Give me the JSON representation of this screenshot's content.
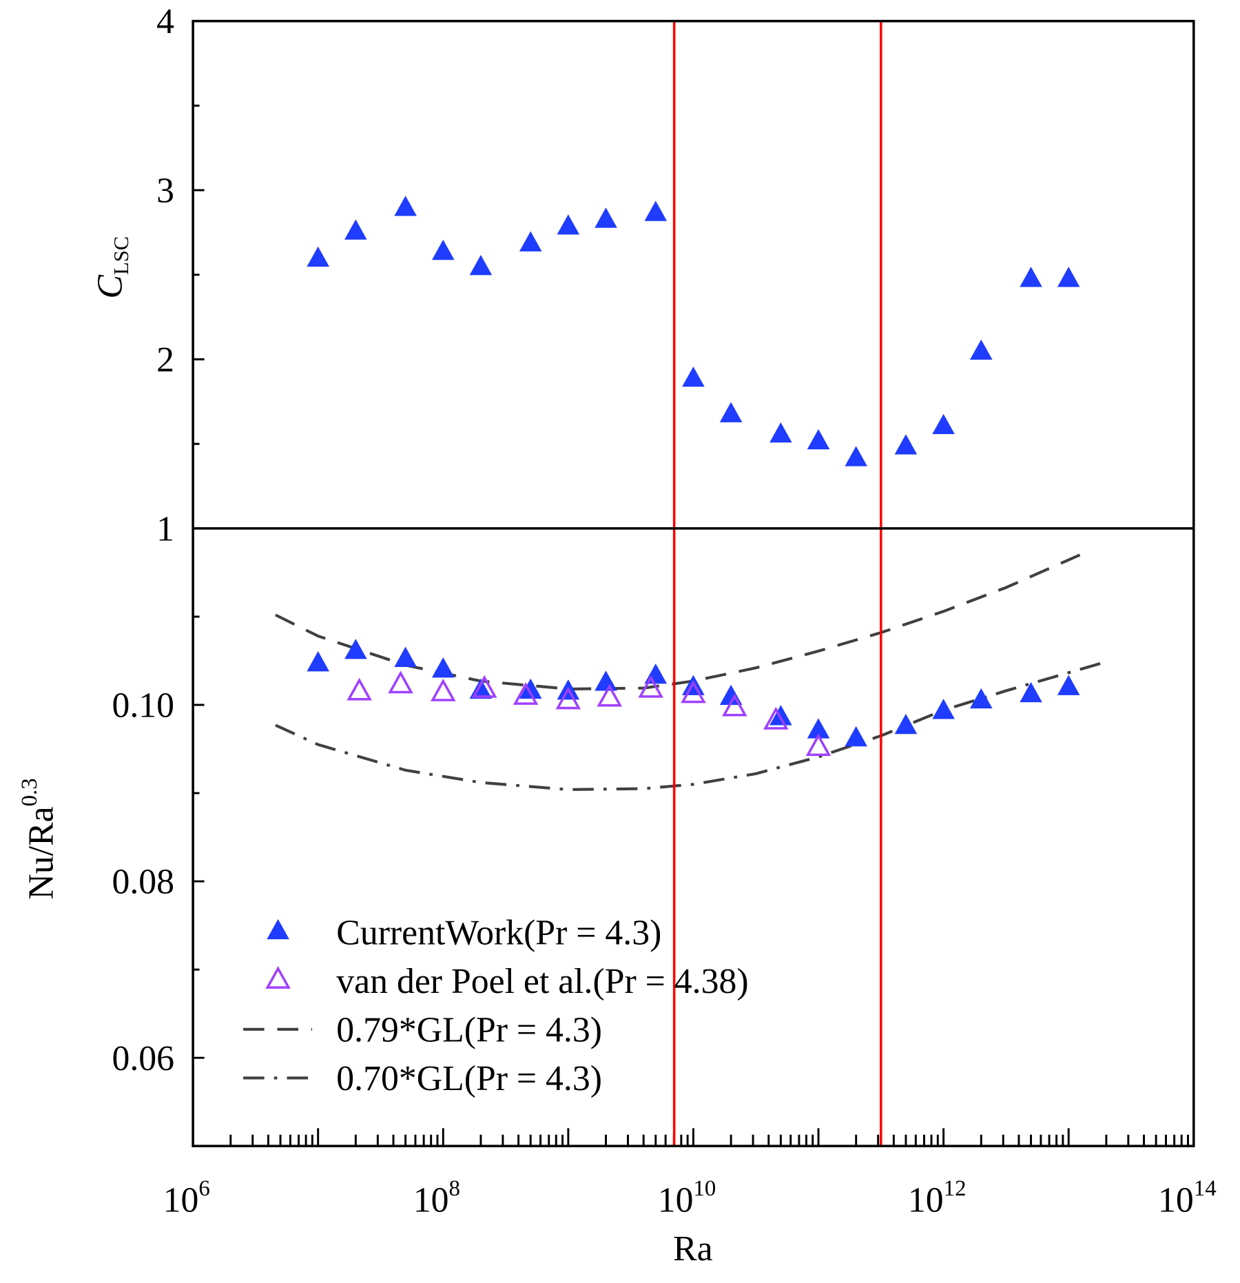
{
  "chart_data": [
    {
      "type": "scatter",
      "panel": "upper",
      "ylabel": "C",
      "ylabel_sub": "LSC",
      "ylim": [
        1,
        4
      ],
      "yticks": [
        "1",
        "2",
        "3",
        "4"
      ],
      "xscale": "log",
      "series": [
        {
          "name": "CurrentWork(Pr=4.3)",
          "marker": "filled-triangle",
          "color": "#1f3cff",
          "log10_x": [
            7,
            7.301,
            7.699,
            8,
            8.301,
            8.699,
            9,
            9.301,
            9.699,
            10,
            10.301,
            10.699,
            11,
            11.301,
            11.699,
            12,
            12.301,
            12.699,
            13
          ],
          "y": [
            2.6,
            2.76,
            2.9,
            2.64,
            2.55,
            2.69,
            2.79,
            2.83,
            2.87,
            1.89,
            1.68,
            1.56,
            1.52,
            1.42,
            1.49,
            1.61,
            2.05,
            2.48,
            2.48
          ]
        }
      ]
    },
    {
      "type": "scatter",
      "panel": "lower",
      "ylabel": "Nu/Ra",
      "ylabel_sup": "0.3",
      "ylim": [
        0.05,
        0.12
      ],
      "yticks": [
        "0.06",
        "0.08",
        "0.10"
      ],
      "xlabel": "Ra",
      "xscale": "log",
      "xlim_log10": [
        6,
        14
      ],
      "xticks": [
        {
          "base": "10",
          "exp": "6"
        },
        {
          "base": "10",
          "exp": "8"
        },
        {
          "base": "10",
          "exp": "10"
        },
        {
          "base": "10",
          "exp": "12"
        },
        {
          "base": "10",
          "exp": "14"
        }
      ],
      "series": [
        {
          "name": "CurrentWork(Pr = 4.3)",
          "marker": "filled-triangle",
          "color": "#1f3cff",
          "log10_x": [
            7,
            7.301,
            7.699,
            8,
            8.301,
            8.699,
            9,
            9.301,
            9.699,
            10,
            10.301,
            10.699,
            11,
            11.301,
            11.699,
            12,
            12.301,
            12.699,
            13
          ],
          "y": [
            0.1048,
            0.1062,
            0.1053,
            0.1041,
            0.1017,
            0.1017,
            0.1016,
            0.1026,
            0.1034,
            0.1021,
            0.101,
            0.0987,
            0.0972,
            0.0963,
            0.0977,
            0.0994,
            0.1006,
            0.1013,
            0.1021
          ]
        },
        {
          "name": "van der Poel et al.(Pr = 4.38)",
          "marker": "open-triangle",
          "color": "#a040ff",
          "log10_x": [
            7.33,
            7.66,
            8,
            8.33,
            8.66,
            9,
            9.33,
            9.66,
            10,
            10.33,
            10.66,
            11
          ],
          "y": [
            0.1016,
            0.1024,
            0.1015,
            0.1019,
            0.1011,
            0.1006,
            0.1009,
            0.1019,
            0.1013,
            0.0998,
            0.0983,
            0.0953
          ]
        },
        {
          "name": "0.79*GL(Pr = 4.3)",
          "line": "dashed",
          "color": "#404040",
          "log10_x": [
            6.66,
            7.0,
            7.7,
            8.3,
            9.0,
            9.6,
            10.0,
            10.5,
            11.0,
            11.5,
            12.0,
            12.5,
            13.09
          ],
          "y": [
            0.1102,
            0.1078,
            0.1045,
            0.1027,
            0.1018,
            0.1019,
            0.1027,
            0.1042,
            0.1061,
            0.1082,
            0.1106,
            0.1133,
            0.117
          ]
        },
        {
          "name": "0.70*GL(Pr = 4.3)",
          "line": "dash-dot",
          "color": "#404040",
          "log10_x": [
            6.66,
            7.0,
            7.7,
            8.3,
            9.0,
            9.6,
            10.0,
            10.5,
            11.0,
            11.5,
            12.0,
            12.5,
            13.28
          ],
          "y": [
            0.0977,
            0.0955,
            0.0926,
            0.0912,
            0.0904,
            0.0905,
            0.091,
            0.0922,
            0.0941,
            0.0965,
            0.0994,
            0.1016,
            0.1048
          ]
        }
      ],
      "vertical_lines": {
        "color": "#ff0000",
        "log10_x": [
          9.847,
          11.5
        ]
      },
      "legend": "bottom-left"
    }
  ]
}
